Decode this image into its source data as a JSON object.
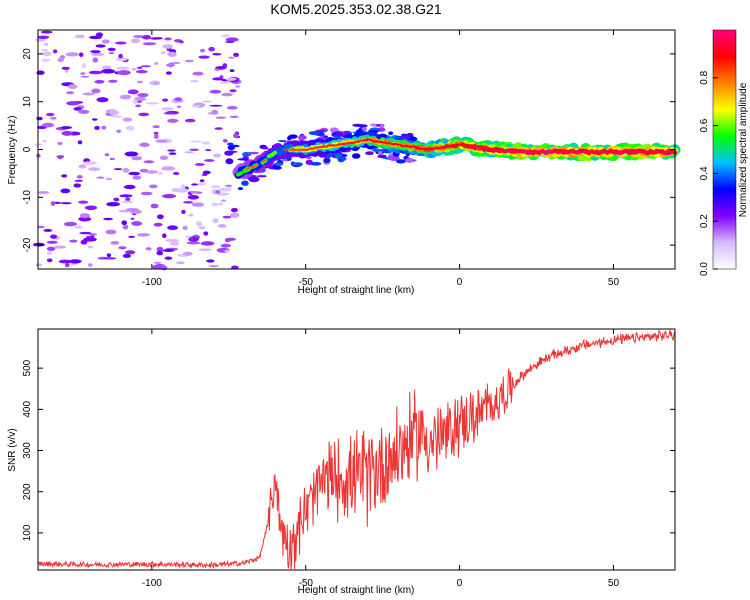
{
  "title": "KOM5.2025.353.02.38.G21",
  "chart_data": [
    {
      "type": "heatmap",
      "name": "spectrogram",
      "xlabel": "Height of straight line (km)",
      "ylabel": "Frequency (Hz)",
      "xlim": [
        -137,
        70
      ],
      "ylim": [
        -25,
        25
      ],
      "xticks": [
        -100,
        -50,
        0,
        50
      ],
      "yticks": [
        -20,
        -10,
        0,
        10,
        20
      ],
      "colorbar": {
        "label": "Normalized spectral amplitude",
        "range": [
          0,
          1
        ],
        "ticks": [
          "0.0",
          "0.2",
          "0.4",
          "0.6",
          "0.8"
        ],
        "colors": [
          "#ffffff",
          "#d8b8ff",
          "#8000ff",
          "#0000ff",
          "#00c0ff",
          "#00ff00",
          "#ffff00",
          "#ff8000",
          "#ff0000",
          "#ff0080"
        ]
      },
      "ridge": [
        {
          "x": -72,
          "f": -5
        },
        {
          "x": -65,
          "f": -3
        },
        {
          "x": -58,
          "f": 0
        },
        {
          "x": -50,
          "f": 0
        },
        {
          "x": -40,
          "f": 1
        },
        {
          "x": -30,
          "f": 2
        },
        {
          "x": -20,
          "f": 1
        },
        {
          "x": -10,
          "f": 0
        },
        {
          "x": 0,
          "f": 1
        },
        {
          "x": 10,
          "f": 0
        },
        {
          "x": 20,
          "f": -0.5
        },
        {
          "x": 70,
          "f": -0.5
        }
      ]
    },
    {
      "type": "line",
      "name": "snr",
      "xlabel": "Height of straight line (km)",
      "ylabel": "SNR (v/v)",
      "xlim": [
        -137,
        70
      ],
      "ylim": [
        10,
        595
      ],
      "xticks": [
        -100,
        -50,
        0,
        50
      ],
      "yticks": [
        100,
        200,
        300,
        400,
        500
      ],
      "color": "#ee3333",
      "x": [
        -137,
        -120,
        -100,
        -80,
        -70,
        -65,
        -62,
        -60,
        -58,
        -55,
        -50,
        -45,
        -40,
        -35,
        -30,
        -25,
        -20,
        -15,
        -12,
        -10,
        -5,
        0,
        5,
        10,
        15,
        20,
        25,
        30,
        40,
        50,
        60,
        70
      ],
      "y": [
        25,
        23,
        24,
        22,
        27,
        40,
        130,
        240,
        110,
        70,
        150,
        220,
        240,
        230,
        240,
        270,
        300,
        330,
        350,
        320,
        330,
        370,
        380,
        410,
        440,
        480,
        510,
        530,
        555,
        568,
        575,
        582
      ]
    }
  ]
}
